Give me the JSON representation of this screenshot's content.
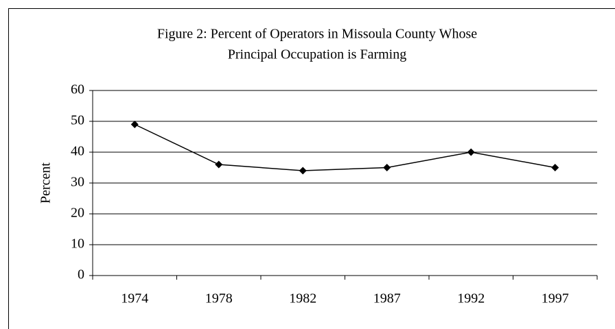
{
  "chart_data": {
    "type": "line",
    "title": [
      "Figure 2: Percent of Operators in Missoula County Whose",
      "Principal Occupation is Farming"
    ],
    "y_label": "Percent",
    "categories": [
      "1974",
      "1978",
      "1982",
      "1987",
      "1992",
      "1997"
    ],
    "values": [
      49,
      36,
      34,
      35,
      40,
      35
    ],
    "color": "#000000",
    "ylim": [
      0,
      60
    ],
    "yticks": [
      0,
      10,
      20,
      30,
      40,
      50,
      60
    ],
    "grid": true
  }
}
